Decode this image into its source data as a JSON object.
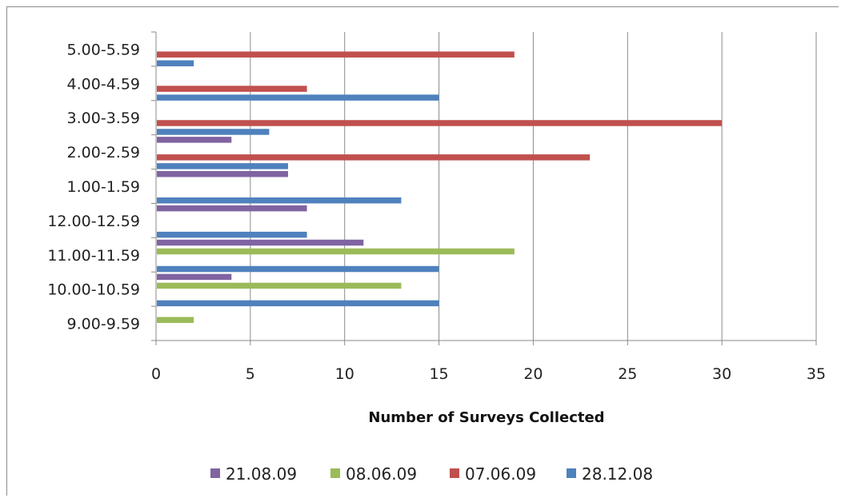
{
  "chart_data": {
    "type": "bar",
    "orientation": "horizontal",
    "categories": [
      "9.00-9.59",
      "10.00-10.59",
      "11.00-11.59",
      "12.00-12.59",
      "1.00-1.59",
      "2.00-2.59",
      "3.00-3.59",
      "4.00-4.59",
      "5.00-5.59"
    ],
    "series": [
      {
        "name": "28.12.08",
        "color": "#4f81bd",
        "values": [
          0,
          15,
          15,
          8,
          13,
          7,
          6,
          15,
          2
        ]
      },
      {
        "name": "07.06.09",
        "color": "#c0504d",
        "values": [
          0,
          0,
          0,
          0,
          0,
          23,
          30,
          8,
          19
        ]
      },
      {
        "name": "08.06.09",
        "color": "#9bbb59",
        "values": [
          2,
          13,
          19,
          0,
          0,
          0,
          0,
          0,
          0
        ]
      },
      {
        "name": "21.08.09",
        "color": "#8064a2",
        "values": [
          0,
          4,
          11,
          8,
          7,
          4,
          0,
          0,
          0
        ]
      }
    ],
    "legend_order": [
      "21.08.09",
      "08.06.09",
      "07.06.09",
      "28.12.08"
    ],
    "xlabel": "Number of Surveys Collected",
    "ylabel": "",
    "title": "",
    "xlim": [
      0,
      35
    ],
    "xticks": [
      0,
      5,
      10,
      15,
      20,
      25,
      30,
      35
    ],
    "grid": "vertical",
    "legend_position": "bottom"
  }
}
